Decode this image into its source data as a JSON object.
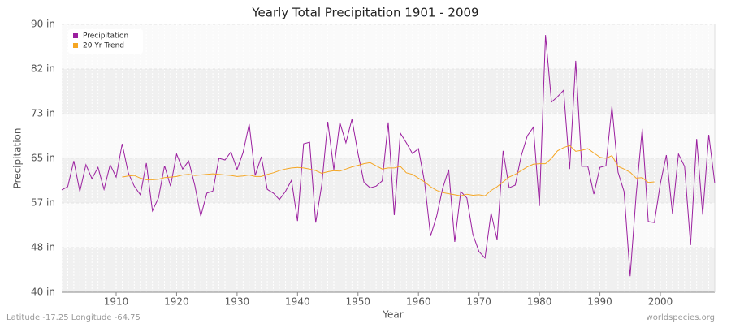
{
  "chart_data": {
    "type": "line",
    "title": "Yearly Total Precipitation 1901 - 2009",
    "x_label": "Year",
    "y_label": "Precipitation",
    "footer_left": "Latitude -17.25 Longitude -64.75",
    "footer_right": "worldspecies.org",
    "legend": "top-left",
    "grid": true,
    "xlim": [
      1901,
      2009
    ],
    "xticks": [
      1910,
      1920,
      1930,
      1940,
      1950,
      1960,
      1970,
      1980,
      1990,
      2000
    ],
    "ylim": [
      40,
      90
    ],
    "yticks": [
      {
        "value": 40,
        "label": "40 in"
      },
      {
        "value": 48.33,
        "label": "48 in"
      },
      {
        "value": 56.67,
        "label": "57 in"
      },
      {
        "value": 65,
        "label": "65 in"
      },
      {
        "value": 73.33,
        "label": "73 in"
      },
      {
        "value": 81.67,
        "label": "82 in"
      },
      {
        "value": 90,
        "label": "90 in"
      }
    ],
    "x": [
      1901,
      1902,
      1903,
      1904,
      1905,
      1906,
      1907,
      1908,
      1909,
      1910,
      1911,
      1912,
      1913,
      1914,
      1915,
      1916,
      1917,
      1918,
      1919,
      1920,
      1921,
      1922,
      1923,
      1924,
      1925,
      1926,
      1927,
      1928,
      1929,
      1930,
      1931,
      1932,
      1933,
      1934,
      1935,
      1936,
      1937,
      1938,
      1939,
      1940,
      1941,
      1942,
      1943,
      1944,
      1945,
      1946,
      1947,
      1948,
      1949,
      1950,
      1951,
      1952,
      1953,
      1954,
      1955,
      1956,
      1957,
      1958,
      1959,
      1960,
      1961,
      1962,
      1963,
      1964,
      1965,
      1966,
      1967,
      1968,
      1969,
      1970,
      1971,
      1972,
      1973,
      1974,
      1975,
      1976,
      1977,
      1978,
      1979,
      1980,
      1981,
      1982,
      1983,
      1984,
      1985,
      1986,
      1987,
      1988,
      1989,
      1990,
      1991,
      1992,
      1993,
      1994,
      1995,
      1996,
      1997,
      1998,
      1999,
      2000,
      2001,
      2002,
      2003,
      2004,
      2005,
      2006,
      2007,
      2008,
      2009
    ],
    "series": [
      {
        "name": "Precipitation",
        "color": "#9b1f9f",
        "values": [
          59.1,
          59.7,
          64.5,
          58.8,
          63.8,
          61.2,
          63.3,
          59.2,
          63.8,
          61.5,
          67.7,
          62.3,
          59.8,
          58.2,
          64.1,
          55.2,
          57.6,
          63.6,
          59.8,
          65.8,
          63.0,
          64.5,
          60.0,
          54.2,
          58.5,
          58.9,
          65.0,
          64.7,
          66.2,
          62.9,
          66.1,
          71.4,
          61.8,
          65.3,
          59.2,
          58.5,
          57.3,
          58.8,
          60.9,
          53.3,
          67.7,
          68.0,
          53.0,
          60.0,
          71.8,
          62.9,
          71.7,
          67.9,
          72.3,
          65.9,
          60.5,
          59.5,
          59.8,
          60.8,
          71.7,
          54.4,
          69.7,
          67.9,
          65.9,
          66.8,
          60.6,
          50.5,
          54.2,
          59.4,
          62.9,
          49.4,
          58.8,
          57.6,
          50.8,
          47.6,
          46.4,
          54.8,
          49.8,
          66.4,
          59.5,
          60.0,
          65.5,
          69.2,
          70.8,
          56.1,
          88.0,
          75.5,
          76.5,
          77.7,
          63.0,
          83.2,
          63.5,
          63.5,
          58.3,
          63.3,
          63.6,
          74.7,
          62.4,
          58.8,
          43.0,
          58.2,
          70.5,
          53.2,
          53.0,
          60.3,
          65.6,
          54.7,
          65.8,
          63.5,
          48.8,
          68.6,
          54.5,
          69.4,
          60.3
        ]
      },
      {
        "name": "20 Yr Trend",
        "color": "#f5a623",
        "values": [
          null,
          null,
          null,
          null,
          null,
          null,
          null,
          null,
          null,
          null,
          61.5,
          61.7,
          61.8,
          61.3,
          61.0,
          61.0,
          61.1,
          61.4,
          61.5,
          61.6,
          61.9,
          62.0,
          61.8,
          61.9,
          62.0,
          62.1,
          62.0,
          61.9,
          61.8,
          61.6,
          61.7,
          61.9,
          61.6,
          61.6,
          62.0,
          62.3,
          62.7,
          63.0,
          63.2,
          63.3,
          63.2,
          63.0,
          62.7,
          62.2,
          62.5,
          62.7,
          62.6,
          63.0,
          63.4,
          63.7,
          64.0,
          64.2,
          63.6,
          63.0,
          63.2,
          63.2,
          63.5,
          62.3,
          62.0,
          61.3,
          60.6,
          59.7,
          59.0,
          58.6,
          58.4,
          58.2,
          58.0,
          58.3,
          58.1,
          58.2,
          58.0,
          59.0,
          59.7,
          60.6,
          61.5,
          62.0,
          62.7,
          63.4,
          63.9,
          64.0,
          64.0,
          65.0,
          66.4,
          67.0,
          67.4,
          66.3,
          66.5,
          66.8,
          66.0,
          65.2,
          65.0,
          65.5,
          63.5,
          63.0,
          62.4,
          61.3,
          61.4,
          60.5,
          60.6,
          null,
          null,
          null,
          null,
          null,
          null,
          null,
          null,
          null,
          null
        ]
      }
    ]
  }
}
